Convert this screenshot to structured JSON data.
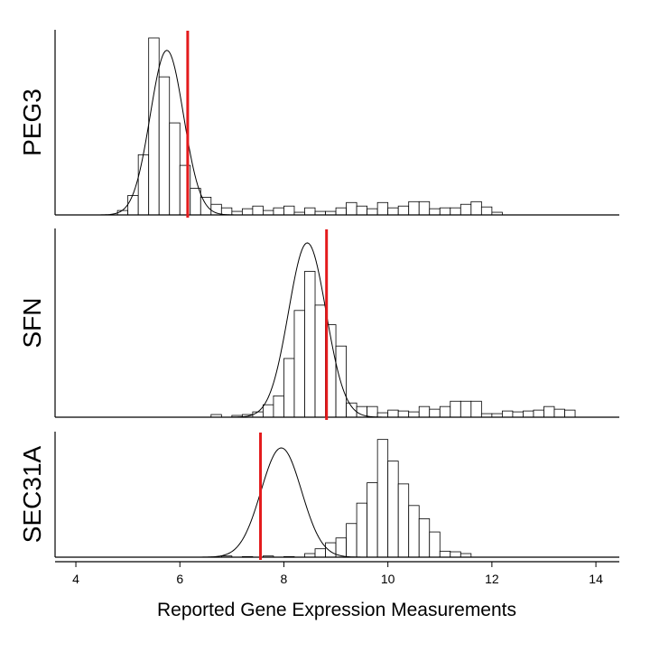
{
  "chart_data": {
    "type": "histogram",
    "xlabel": "Reported Gene Expression Measurements",
    "x_ticks": [
      4,
      6,
      8,
      10,
      12,
      14
    ],
    "xlim": [
      3.6,
      14.45
    ],
    "bin_width": 0.2,
    "density_axis_shown": false,
    "grid": false,
    "legend": "none",
    "colors": {
      "bars": "#ffffff",
      "bar_edge": "#000000",
      "curve": "#000000",
      "marker_line": "#e41a1c"
    },
    "panels": [
      {
        "name": "PEG3",
        "marker_x": 6.15,
        "ymax": 1.0,
        "curve": {
          "type": "normal",
          "mean": 5.75,
          "sd": 0.32,
          "peak": 0.93
        },
        "bins": [
          {
            "x0": 4.8,
            "h": 0.025
          },
          {
            "x0": 5.0,
            "h": 0.11
          },
          {
            "x0": 5.2,
            "h": 0.34
          },
          {
            "x0": 5.4,
            "h": 1.0
          },
          {
            "x0": 5.6,
            "h": 0.78
          },
          {
            "x0": 5.8,
            "h": 0.52
          },
          {
            "x0": 6.0,
            "h": 0.28
          },
          {
            "x0": 6.2,
            "h": 0.15
          },
          {
            "x0": 6.4,
            "h": 0.1
          },
          {
            "x0": 6.6,
            "h": 0.06
          },
          {
            "x0": 6.8,
            "h": 0.04
          },
          {
            "x0": 7.0,
            "h": 0.02
          },
          {
            "x0": 7.2,
            "h": 0.035
          },
          {
            "x0": 7.4,
            "h": 0.05
          },
          {
            "x0": 7.6,
            "h": 0.025
          },
          {
            "x0": 7.8,
            "h": 0.04
          },
          {
            "x0": 8.0,
            "h": 0.05
          },
          {
            "x0": 8.2,
            "h": 0.015
          },
          {
            "x0": 8.4,
            "h": 0.04
          },
          {
            "x0": 8.6,
            "h": 0.02
          },
          {
            "x0": 8.8,
            "h": 0.02
          },
          {
            "x0": 9.0,
            "h": 0.04
          },
          {
            "x0": 9.2,
            "h": 0.07
          },
          {
            "x0": 9.4,
            "h": 0.05
          },
          {
            "x0": 9.6,
            "h": 0.035
          },
          {
            "x0": 9.8,
            "h": 0.07
          },
          {
            "x0": 10.0,
            "h": 0.04
          },
          {
            "x0": 10.2,
            "h": 0.05
          },
          {
            "x0": 10.4,
            "h": 0.075
          },
          {
            "x0": 10.6,
            "h": 0.075
          },
          {
            "x0": 10.8,
            "h": 0.035
          },
          {
            "x0": 11.0,
            "h": 0.04
          },
          {
            "x0": 11.2,
            "h": 0.04
          },
          {
            "x0": 11.4,
            "h": 0.06
          },
          {
            "x0": 11.6,
            "h": 0.075
          },
          {
            "x0": 11.8,
            "h": 0.045
          },
          {
            "x0": 12.0,
            "h": 0.015
          }
        ]
      },
      {
        "name": "SFN",
        "marker_x": 8.82,
        "ymax": 1.0,
        "curve": {
          "type": "normal",
          "mean": 8.45,
          "sd": 0.36,
          "peak": 0.98
        },
        "bins": [
          {
            "x0": 6.6,
            "h": 0.015
          },
          {
            "x0": 7.0,
            "h": 0.01
          },
          {
            "x0": 7.2,
            "h": 0.015
          },
          {
            "x0": 7.4,
            "h": 0.03
          },
          {
            "x0": 7.6,
            "h": 0.07
          },
          {
            "x0": 7.8,
            "h": 0.12
          },
          {
            "x0": 8.0,
            "h": 0.33
          },
          {
            "x0": 8.2,
            "h": 0.6
          },
          {
            "x0": 8.4,
            "h": 0.82
          },
          {
            "x0": 8.6,
            "h": 0.63
          },
          {
            "x0": 8.8,
            "h": 0.52
          },
          {
            "x0": 9.0,
            "h": 0.4
          },
          {
            "x0": 9.2,
            "h": 0.08
          },
          {
            "x0": 9.4,
            "h": 0.06
          },
          {
            "x0": 9.6,
            "h": 0.06
          },
          {
            "x0": 9.8,
            "h": 0.025
          },
          {
            "x0": 10.0,
            "h": 0.04
          },
          {
            "x0": 10.2,
            "h": 0.035
          },
          {
            "x0": 10.4,
            "h": 0.03
          },
          {
            "x0": 10.6,
            "h": 0.06
          },
          {
            "x0": 10.8,
            "h": 0.045
          },
          {
            "x0": 11.0,
            "h": 0.06
          },
          {
            "x0": 11.2,
            "h": 0.09
          },
          {
            "x0": 11.4,
            "h": 0.09
          },
          {
            "x0": 11.6,
            "h": 0.09
          },
          {
            "x0": 11.8,
            "h": 0.02
          },
          {
            "x0": 12.0,
            "h": 0.02
          },
          {
            "x0": 12.2,
            "h": 0.035
          },
          {
            "x0": 12.4,
            "h": 0.03
          },
          {
            "x0": 12.6,
            "h": 0.035
          },
          {
            "x0": 12.8,
            "h": 0.04
          },
          {
            "x0": 13.0,
            "h": 0.06
          },
          {
            "x0": 13.2,
            "h": 0.045
          },
          {
            "x0": 13.4,
            "h": 0.04
          }
        ]
      },
      {
        "name": "SEC31A",
        "marker_x": 7.55,
        "ymax": 1.0,
        "curve": {
          "type": "normal",
          "mean": 7.95,
          "sd": 0.39,
          "peak": 0.91
        },
        "bins": [
          {
            "x0": 6.8,
            "h": 0.01
          },
          {
            "x0": 7.2,
            "h": 0.005
          },
          {
            "x0": 7.6,
            "h": 0.01
          },
          {
            "x0": 8.0,
            "h": 0.005
          },
          {
            "x0": 8.4,
            "h": 0.03
          },
          {
            "x0": 8.6,
            "h": 0.07
          },
          {
            "x0": 8.8,
            "h": 0.12
          },
          {
            "x0": 9.0,
            "h": 0.16
          },
          {
            "x0": 9.2,
            "h": 0.28
          },
          {
            "x0": 9.4,
            "h": 0.45
          },
          {
            "x0": 9.6,
            "h": 0.62
          },
          {
            "x0": 9.8,
            "h": 0.98
          },
          {
            "x0": 10.0,
            "h": 0.8
          },
          {
            "x0": 10.2,
            "h": 0.61
          },
          {
            "x0": 10.4,
            "h": 0.43
          },
          {
            "x0": 10.6,
            "h": 0.32
          },
          {
            "x0": 10.8,
            "h": 0.21
          },
          {
            "x0": 11.0,
            "h": 0.05
          },
          {
            "x0": 11.2,
            "h": 0.045
          },
          {
            "x0": 11.4,
            "h": 0.03
          }
        ]
      }
    ]
  }
}
